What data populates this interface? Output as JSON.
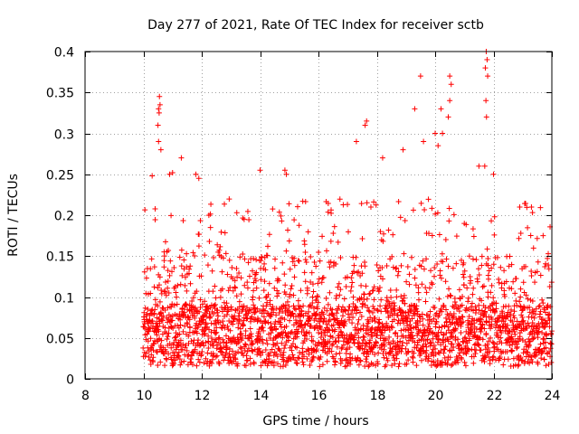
{
  "chart_data": {
    "type": "scatter",
    "title": "Day 277 of 2021, Rate Of TEC Index for receiver sctb",
    "xlabel": "GPS time / hours",
    "ylabel": "ROTI / TECUs",
    "xlim": [
      8,
      24
    ],
    "ylim": [
      0,
      0.4
    ],
    "xticks": [
      8,
      10,
      12,
      14,
      16,
      18,
      20,
      22,
      24
    ],
    "xtick_labels": [
      "8",
      "10",
      "12",
      "14",
      "16",
      "18",
      "20",
      "22",
      "24"
    ],
    "yticks": [
      0,
      0.05,
      0.1,
      0.15,
      0.2,
      0.25,
      0.3,
      0.35,
      0.4
    ],
    "ytick_labels": [
      "0",
      "0.05",
      "0.1",
      "0.15",
      "0.2",
      "0.25",
      "0.3",
      "0.35",
      "0.4"
    ],
    "grid": true,
    "marker": "plus",
    "color": "#ff0000",
    "series": [
      {
        "name": "ROTI",
        "x_range": [
          10.0,
          24.0
        ],
        "typical_range": [
          0.01,
          0.25
        ],
        "points": [
          [
            10.55,
            0.345
          ],
          [
            10.57,
            0.335
          ],
          [
            10.52,
            0.33
          ],
          [
            10.54,
            0.325
          ],
          [
            10.5,
            0.31
          ],
          [
            10.52,
            0.29
          ],
          [
            10.6,
            0.28
          ],
          [
            10.3,
            0.248
          ],
          [
            10.9,
            0.25
          ],
          [
            11.0,
            0.252
          ],
          [
            11.3,
            0.27
          ],
          [
            11.8,
            0.25
          ],
          [
            11.9,
            0.245
          ],
          [
            12.3,
            0.185
          ],
          [
            14.0,
            0.255
          ],
          [
            14.85,
            0.255
          ],
          [
            14.9,
            0.25
          ],
          [
            17.3,
            0.29
          ],
          [
            17.6,
            0.31
          ],
          [
            17.65,
            0.315
          ],
          [
            18.2,
            0.27
          ],
          [
            18.9,
            0.28
          ],
          [
            19.3,
            0.33
          ],
          [
            19.5,
            0.37
          ],
          [
            19.6,
            0.29
          ],
          [
            20.0,
            0.3
          ],
          [
            20.1,
            0.285
          ],
          [
            20.2,
            0.33
          ],
          [
            20.25,
            0.3
          ],
          [
            20.5,
            0.37
          ],
          [
            20.55,
            0.36
          ],
          [
            20.5,
            0.34
          ],
          [
            20.45,
            0.32
          ],
          [
            21.75,
            0.4
          ],
          [
            21.78,
            0.39
          ],
          [
            21.72,
            0.38
          ],
          [
            21.8,
            0.37
          ],
          [
            21.74,
            0.34
          ],
          [
            21.76,
            0.32
          ],
          [
            21.7,
            0.26
          ],
          [
            21.5,
            0.26
          ],
          [
            22.0,
            0.25
          ],
          [
            22.9,
            0.21
          ],
          [
            23.3,
            0.21
          ],
          [
            23.7,
            0.175
          ]
        ]
      }
    ]
  }
}
